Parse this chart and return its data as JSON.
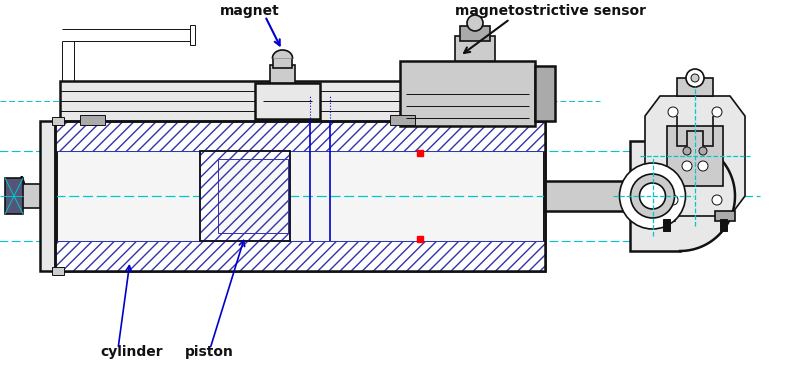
{
  "bg_color": "#ffffff",
  "line_color": "#111111",
  "blue_line": "#0000cc",
  "cyan_line": "#00c8c8",
  "red_color": "#cc0000",
  "hatch_color": "#3333aa",
  "gray_light": "#e8e8e8",
  "gray_mid": "#cccccc",
  "gray_dark": "#aaaaaa",
  "labels": {
    "magnet": "magnet",
    "sensor": "magnetostrictive sensor",
    "cylinder": "cylinder",
    "piston": "piston"
  },
  "figsize": [
    8.0,
    3.71
  ],
  "dpi": 100
}
